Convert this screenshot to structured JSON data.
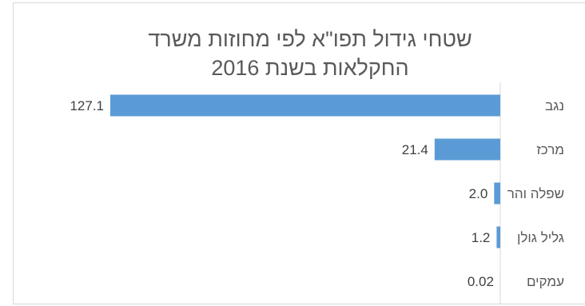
{
  "chart_data": {
    "type": "bar",
    "orientation": "horizontal",
    "title_lines": [
      "שטחי גידול תפו\"א לפי מחוזות משרד",
      "החקלאות בשנת 2016"
    ],
    "categories": [
      "נגב",
      "מרכז",
      "שפלה והר",
      "גליל גולן",
      "עמקים"
    ],
    "values": [
      127.1,
      21.4,
      2.0,
      1.2,
      0.02
    ],
    "value_labels": [
      "127.1",
      "21.4",
      "2.0",
      "1.2",
      "0.02"
    ],
    "xlim": [
      0,
      127.1
    ],
    "bar_direction": "right-to-left",
    "grid": false,
    "legend": "none",
    "colors": {
      "bar": "#5b9bd5",
      "axis": "#d9d9d9",
      "text": "#595959"
    }
  }
}
